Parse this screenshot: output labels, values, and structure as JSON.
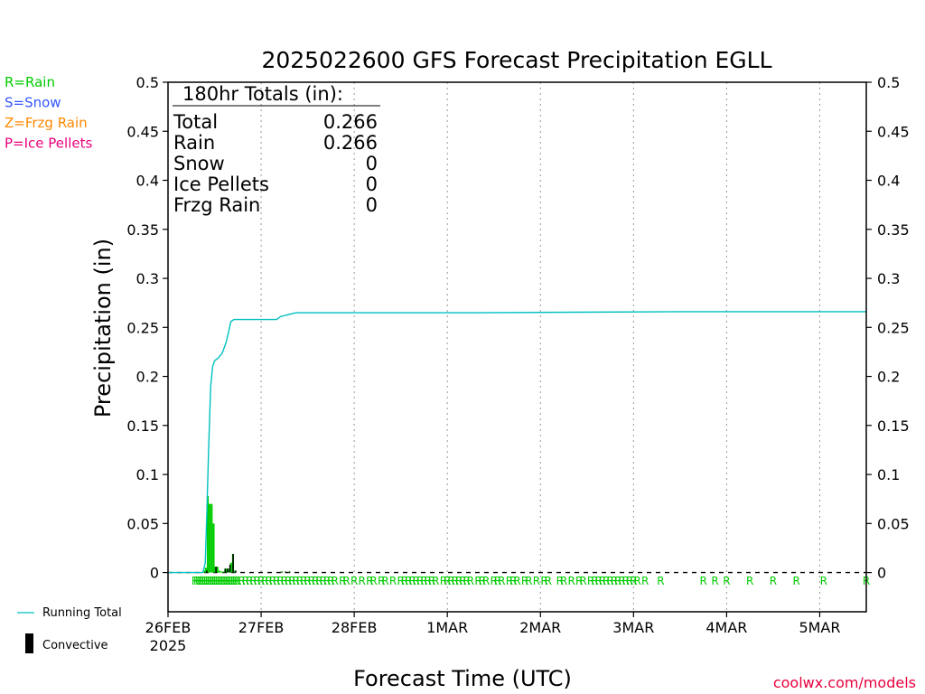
{
  "chart_data": {
    "type": "bar",
    "title": "2025022600 GFS Forecast Precipitation EGLL",
    "xlabel": "Forecast Time (UTC)",
    "ylabel": "Precipitation (in)",
    "ylim": [
      -0.04,
      0.5
    ],
    "y_ticks": [
      "0",
      "0.05",
      "0.1",
      "0.15",
      "0.2",
      "0.25",
      "0.3",
      "0.35",
      "0.4",
      "0.45",
      "0.5"
    ],
    "y_tick_values": [
      0,
      0.05,
      0.1,
      0.15,
      0.2,
      0.25,
      0.3,
      0.35,
      0.4,
      0.45,
      0.5
    ],
    "xlim_hours": [
      0,
      180
    ],
    "x_ticks": [
      {
        "label": "26FEB",
        "sub": "2025",
        "hour": 0
      },
      {
        "label": "27FEB",
        "sub": "",
        "hour": 24
      },
      {
        "label": "28FEB",
        "sub": "",
        "hour": 48
      },
      {
        "label": "1MAR",
        "sub": "",
        "hour": 72
      },
      {
        "label": "2MAR",
        "sub": "",
        "hour": 96
      },
      {
        "label": "3MAR",
        "sub": "",
        "hour": 120
      },
      {
        "label": "4MAR",
        "sub": "",
        "hour": 144
      },
      {
        "label": "5MAR",
        "sub": "",
        "hour": 168
      }
    ],
    "grid": "vertical dotted",
    "legend_ptype": [
      {
        "label": "R=Rain",
        "color": "#00cc00"
      },
      {
        "label": "S=Snow",
        "color": "#3355ff"
      },
      {
        "label": "Z=Frzg Rain",
        "color": "#ff8800"
      },
      {
        "label": "P=Ice Pellets",
        "color": "#e8007c"
      }
    ],
    "legend_series": [
      {
        "label": "Running Total",
        "color": "#00c0c0"
      },
      {
        "label": "Convective",
        "color": "#000000"
      }
    ],
    "totals": {
      "heading": "180hr Totals (in):",
      "rows": [
        {
          "label": "Total",
          "value": "0.266"
        },
        {
          "label": "Rain",
          "value": "0.266"
        },
        {
          "label": "Snow",
          "value": "0"
        },
        {
          "label": "Ice Pellets",
          "value": "0"
        },
        {
          "label": "Frzg Rain",
          "value": "0"
        }
      ]
    },
    "bars_rain": [
      {
        "hour": 9,
        "value": 0.002
      },
      {
        "hour": 9.5,
        "value": 0.005
      },
      {
        "hour": 10,
        "value": 0.078
      },
      {
        "hour": 10.5,
        "value": 0.07
      },
      {
        "hour": 11,
        "value": 0.07
      },
      {
        "hour": 11.5,
        "value": 0.05
      },
      {
        "hour": 12,
        "value": 0.006
      },
      {
        "hour": 12.5,
        "value": 0.006
      },
      {
        "hour": 13,
        "value": 0.002
      },
      {
        "hour": 13.5,
        "value": 0.001
      },
      {
        "hour": 14,
        "value": 0.001
      },
      {
        "hour": 14.5,
        "value": 0.004
      },
      {
        "hour": 15,
        "value": 0.004
      },
      {
        "hour": 15.5,
        "value": 0.004
      },
      {
        "hour": 16,
        "value": 0.01
      },
      {
        "hour": 16.5,
        "value": 0.019
      },
      {
        "hour": 17,
        "value": 0.002
      },
      {
        "hour": 29,
        "value": 0.001
      },
      {
        "hour": 30,
        "value": 0.001
      },
      {
        "hour": 31,
        "value": 0.001
      }
    ],
    "bars_convective": [
      {
        "hour": 9.8,
        "value": 0.002
      },
      {
        "hour": 12.2,
        "value": 0.006
      },
      {
        "hour": 14.6,
        "value": 0.004
      },
      {
        "hour": 15.2,
        "value": 0.004
      },
      {
        "hour": 15.8,
        "value": 0.008
      },
      {
        "hour": 16.6,
        "value": 0.019
      },
      {
        "hour": 17.3,
        "value": 0.002
      },
      {
        "hour": 29.2,
        "value": 0.001
      },
      {
        "hour": 30.2,
        "value": 0.001
      },
      {
        "hour": 31.2,
        "value": 0.001
      }
    ],
    "running_total": [
      {
        "hour": 0,
        "value": 0
      },
      {
        "hour": 9,
        "value": 0
      },
      {
        "hour": 9.6,
        "value": 0.01
      },
      {
        "hour": 10,
        "value": 0.06
      },
      {
        "hour": 10.5,
        "value": 0.13
      },
      {
        "hour": 11,
        "value": 0.19
      },
      {
        "hour": 11.5,
        "value": 0.21
      },
      {
        "hour": 12,
        "value": 0.216
      },
      {
        "hour": 13,
        "value": 0.219
      },
      {
        "hour": 14,
        "value": 0.224
      },
      {
        "hour": 15,
        "value": 0.235
      },
      {
        "hour": 15.6,
        "value": 0.245
      },
      {
        "hour": 16.2,
        "value": 0.256
      },
      {
        "hour": 17,
        "value": 0.258
      },
      {
        "hour": 28,
        "value": 0.258
      },
      {
        "hour": 29,
        "value": 0.261
      },
      {
        "hour": 31,
        "value": 0.263
      },
      {
        "hour": 33,
        "value": 0.265
      },
      {
        "hour": 80,
        "value": 0.265
      },
      {
        "hour": 132,
        "value": 0.266
      },
      {
        "hour": 180,
        "value": 0.266
      }
    ],
    "ptype_markers": {
      "symbol": "R",
      "hours": [
        7,
        7.5,
        8,
        8.5,
        9,
        9.5,
        10,
        10.5,
        11,
        11.5,
        12,
        12.5,
        13,
        13.5,
        14,
        14.5,
        15,
        15.5,
        16,
        16.5,
        17,
        17.5,
        18,
        19,
        20,
        21,
        22,
        23,
        24,
        25,
        26,
        27,
        28,
        29,
        30,
        31,
        32,
        33,
        34,
        35,
        36,
        37,
        38,
        39,
        40,
        41,
        42,
        43,
        45,
        46,
        48,
        50,
        52,
        53,
        55,
        56,
        58,
        60,
        61,
        62,
        63,
        64,
        65,
        66,
        67,
        68,
        69,
        71,
        72,
        73,
        74,
        75,
        76,
        77,
        78,
        80,
        81,
        82,
        84,
        85,
        86,
        88,
        89,
        90,
        92,
        93,
        95,
        97,
        98,
        101,
        102,
        104,
        106,
        107,
        109,
        110,
        111,
        112,
        113,
        114,
        115,
        116,
        117,
        118,
        119,
        120,
        121,
        123,
        127,
        138,
        141,
        144,
        150,
        156,
        162,
        169,
        180
      ]
    }
  },
  "credit": "coolwx.com/models"
}
